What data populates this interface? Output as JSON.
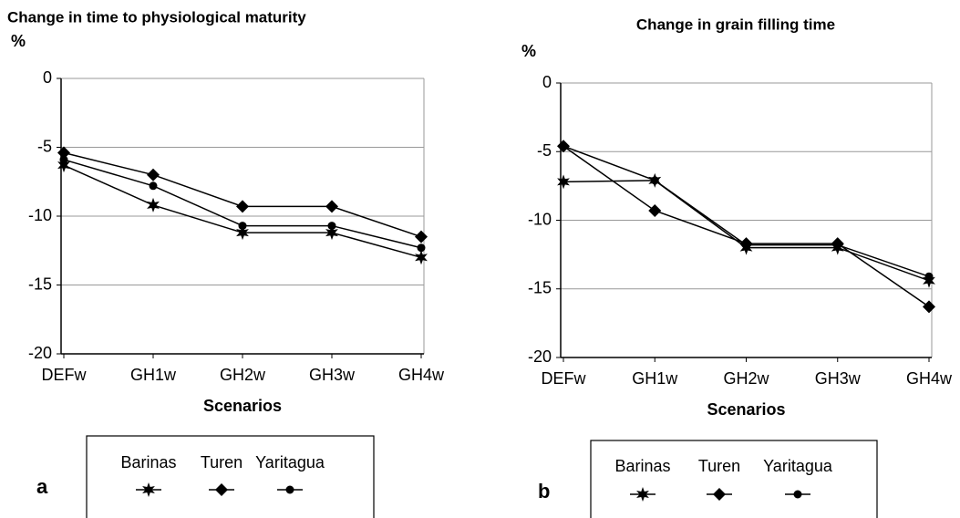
{
  "chart_data": [
    {
      "type": "line",
      "title": "Change in time to physiological maturity",
      "y_label": "%",
      "x_label": "Scenarios",
      "panel_label": "a",
      "categories": [
        "DEFw",
        "GH1w",
        "GH2w",
        "GH3w",
        "GH4w"
      ],
      "ylim": [
        -20,
        0
      ],
      "yticks": [
        0,
        -5,
        -10,
        -15,
        -20
      ],
      "grid": true,
      "series": [
        {
          "name": "Barinas",
          "color": "#000000",
          "marker": "star",
          "values": [
            -6.3,
            -9.2,
            -11.2,
            -11.2,
            -13.0
          ]
        },
        {
          "name": "Turen",
          "color": "#000000",
          "marker": "diamond",
          "values": [
            -5.4,
            -7.0,
            -9.3,
            -9.3,
            -11.5
          ]
        },
        {
          "name": "Yaritagua",
          "color": "#000000",
          "marker": "circle",
          "values": [
            -5.9,
            -7.8,
            -10.7,
            -10.7,
            -12.3
          ]
        }
      ]
    },
    {
      "type": "line",
      "title": "Change in grain filling time",
      "y_label": "%",
      "x_label": "Scenarios",
      "panel_label": "b",
      "categories": [
        "DEFw",
        "GH1w",
        "GH2w",
        "GH3w",
        "GH4w"
      ],
      "ylim": [
        -20,
        0
      ],
      "yticks": [
        0,
        -5,
        -10,
        -15,
        -20
      ],
      "grid": true,
      "series": [
        {
          "name": "Barinas",
          "color": "#000000",
          "marker": "star",
          "values": [
            -7.2,
            -7.1,
            -12.0,
            -12.0,
            -14.4
          ]
        },
        {
          "name": "Turen",
          "color": "#000000",
          "marker": "diamond",
          "values": [
            -4.6,
            -9.3,
            -11.7,
            -11.7,
            -16.3
          ]
        },
        {
          "name": "Yaritagua",
          "color": "#000000",
          "marker": "circle",
          "values": [
            -4.6,
            -7.1,
            -11.8,
            -11.8,
            -14.1
          ]
        }
      ]
    }
  ]
}
